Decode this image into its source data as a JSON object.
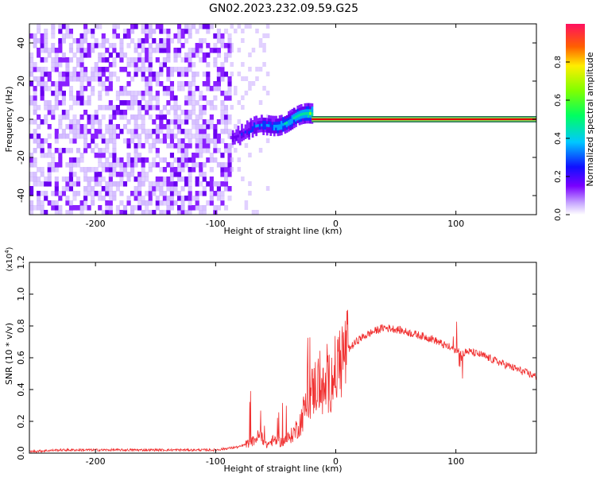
{
  "title": "GN02.2023.232.09.59.G25",
  "colors": {
    "snr_line": "#f03030",
    "center_line": "#e00000"
  },
  "chart_data": [
    {
      "type": "heatmap",
      "xlabel": "Height of straight line (km)",
      "ylabel": "Frequency (Hz)",
      "xlim": [
        -255,
        167
      ],
      "ylim": [
        -50,
        50
      ],
      "xticks": [
        -200,
        -100,
        0,
        100
      ],
      "xtick_labels": [
        "-200",
        "-100",
        "0",
        "100"
      ],
      "yticks": [
        -40,
        -20,
        0,
        20,
        40
      ],
      "ytick_labels": [
        "-40",
        "-20",
        "0",
        "20",
        "40"
      ],
      "colorbar": {
        "label": "Normalized spectral amplitude",
        "range": [
          0.0,
          1.0
        ],
        "ticks": [
          0.0,
          0.2,
          0.4,
          0.6,
          0.8
        ],
        "tick_labels": [
          "0.0",
          "0.2",
          "0.4",
          "0.6",
          "0.8"
        ],
        "colormap": "rainbow"
      },
      "regions": [
        {
          "x_range": [
            -255,
            -88
          ],
          "description": "broadband noise",
          "amplitude": [
            0.0,
            0.2
          ]
        },
        {
          "x_range": [
            -88,
            -20
          ],
          "description": "emerging signal near 0 Hz",
          "freq_center": [
            -9,
            2
          ],
          "amplitude": [
            0.2,
            0.7
          ]
        },
        {
          "x_range": [
            -20,
            167
          ],
          "description": "stable tone at 0 Hz",
          "freq_center": [
            0,
            0
          ],
          "amplitude": [
            0.9,
            1.0
          ]
        }
      ]
    },
    {
      "type": "line",
      "xlabel": "Height of straight line (km)",
      "ylabel": "SNR (10 * v/v)",
      "y_multiplier": "(x10^4)",
      "xlim": [
        -255,
        167
      ],
      "ylim": [
        0.0,
        1.2
      ],
      "xticks": [
        -200,
        -100,
        0,
        100
      ],
      "xtick_labels": [
        "-200",
        "-100",
        "0",
        "100"
      ],
      "yticks": [
        0.0,
        0.2,
        0.4,
        0.6,
        0.8,
        1.0,
        1.2
      ],
      "ytick_labels": [
        "0.0",
        "0.2",
        "0.4",
        "0.6",
        "0.8",
        "1.0",
        "1.2"
      ],
      "series": [
        {
          "x": [
            -255,
            -230,
            -200,
            -160,
            -120,
            -100,
            -90,
            -80,
            -70,
            -62,
            -58,
            -52,
            -45,
            -38,
            -30,
            -25,
            -20,
            -15,
            -10,
            -5,
            0,
            5,
            10,
            20,
            30,
            40,
            50,
            60,
            70,
            80,
            90,
            100,
            105,
            110,
            120,
            140,
            167
          ],
          "y": [
            0.01,
            0.02,
            0.02,
            0.02,
            0.02,
            0.02,
            0.03,
            0.04,
            0.07,
            0.12,
            0.05,
            0.08,
            0.07,
            0.1,
            0.18,
            0.3,
            0.38,
            0.45,
            0.38,
            0.45,
            0.52,
            0.6,
            0.65,
            0.72,
            0.76,
            0.79,
            0.78,
            0.76,
            0.74,
            0.72,
            0.68,
            0.65,
            0.63,
            0.64,
            0.62,
            0.56,
            0.48
          ]
        }
      ]
    }
  ]
}
